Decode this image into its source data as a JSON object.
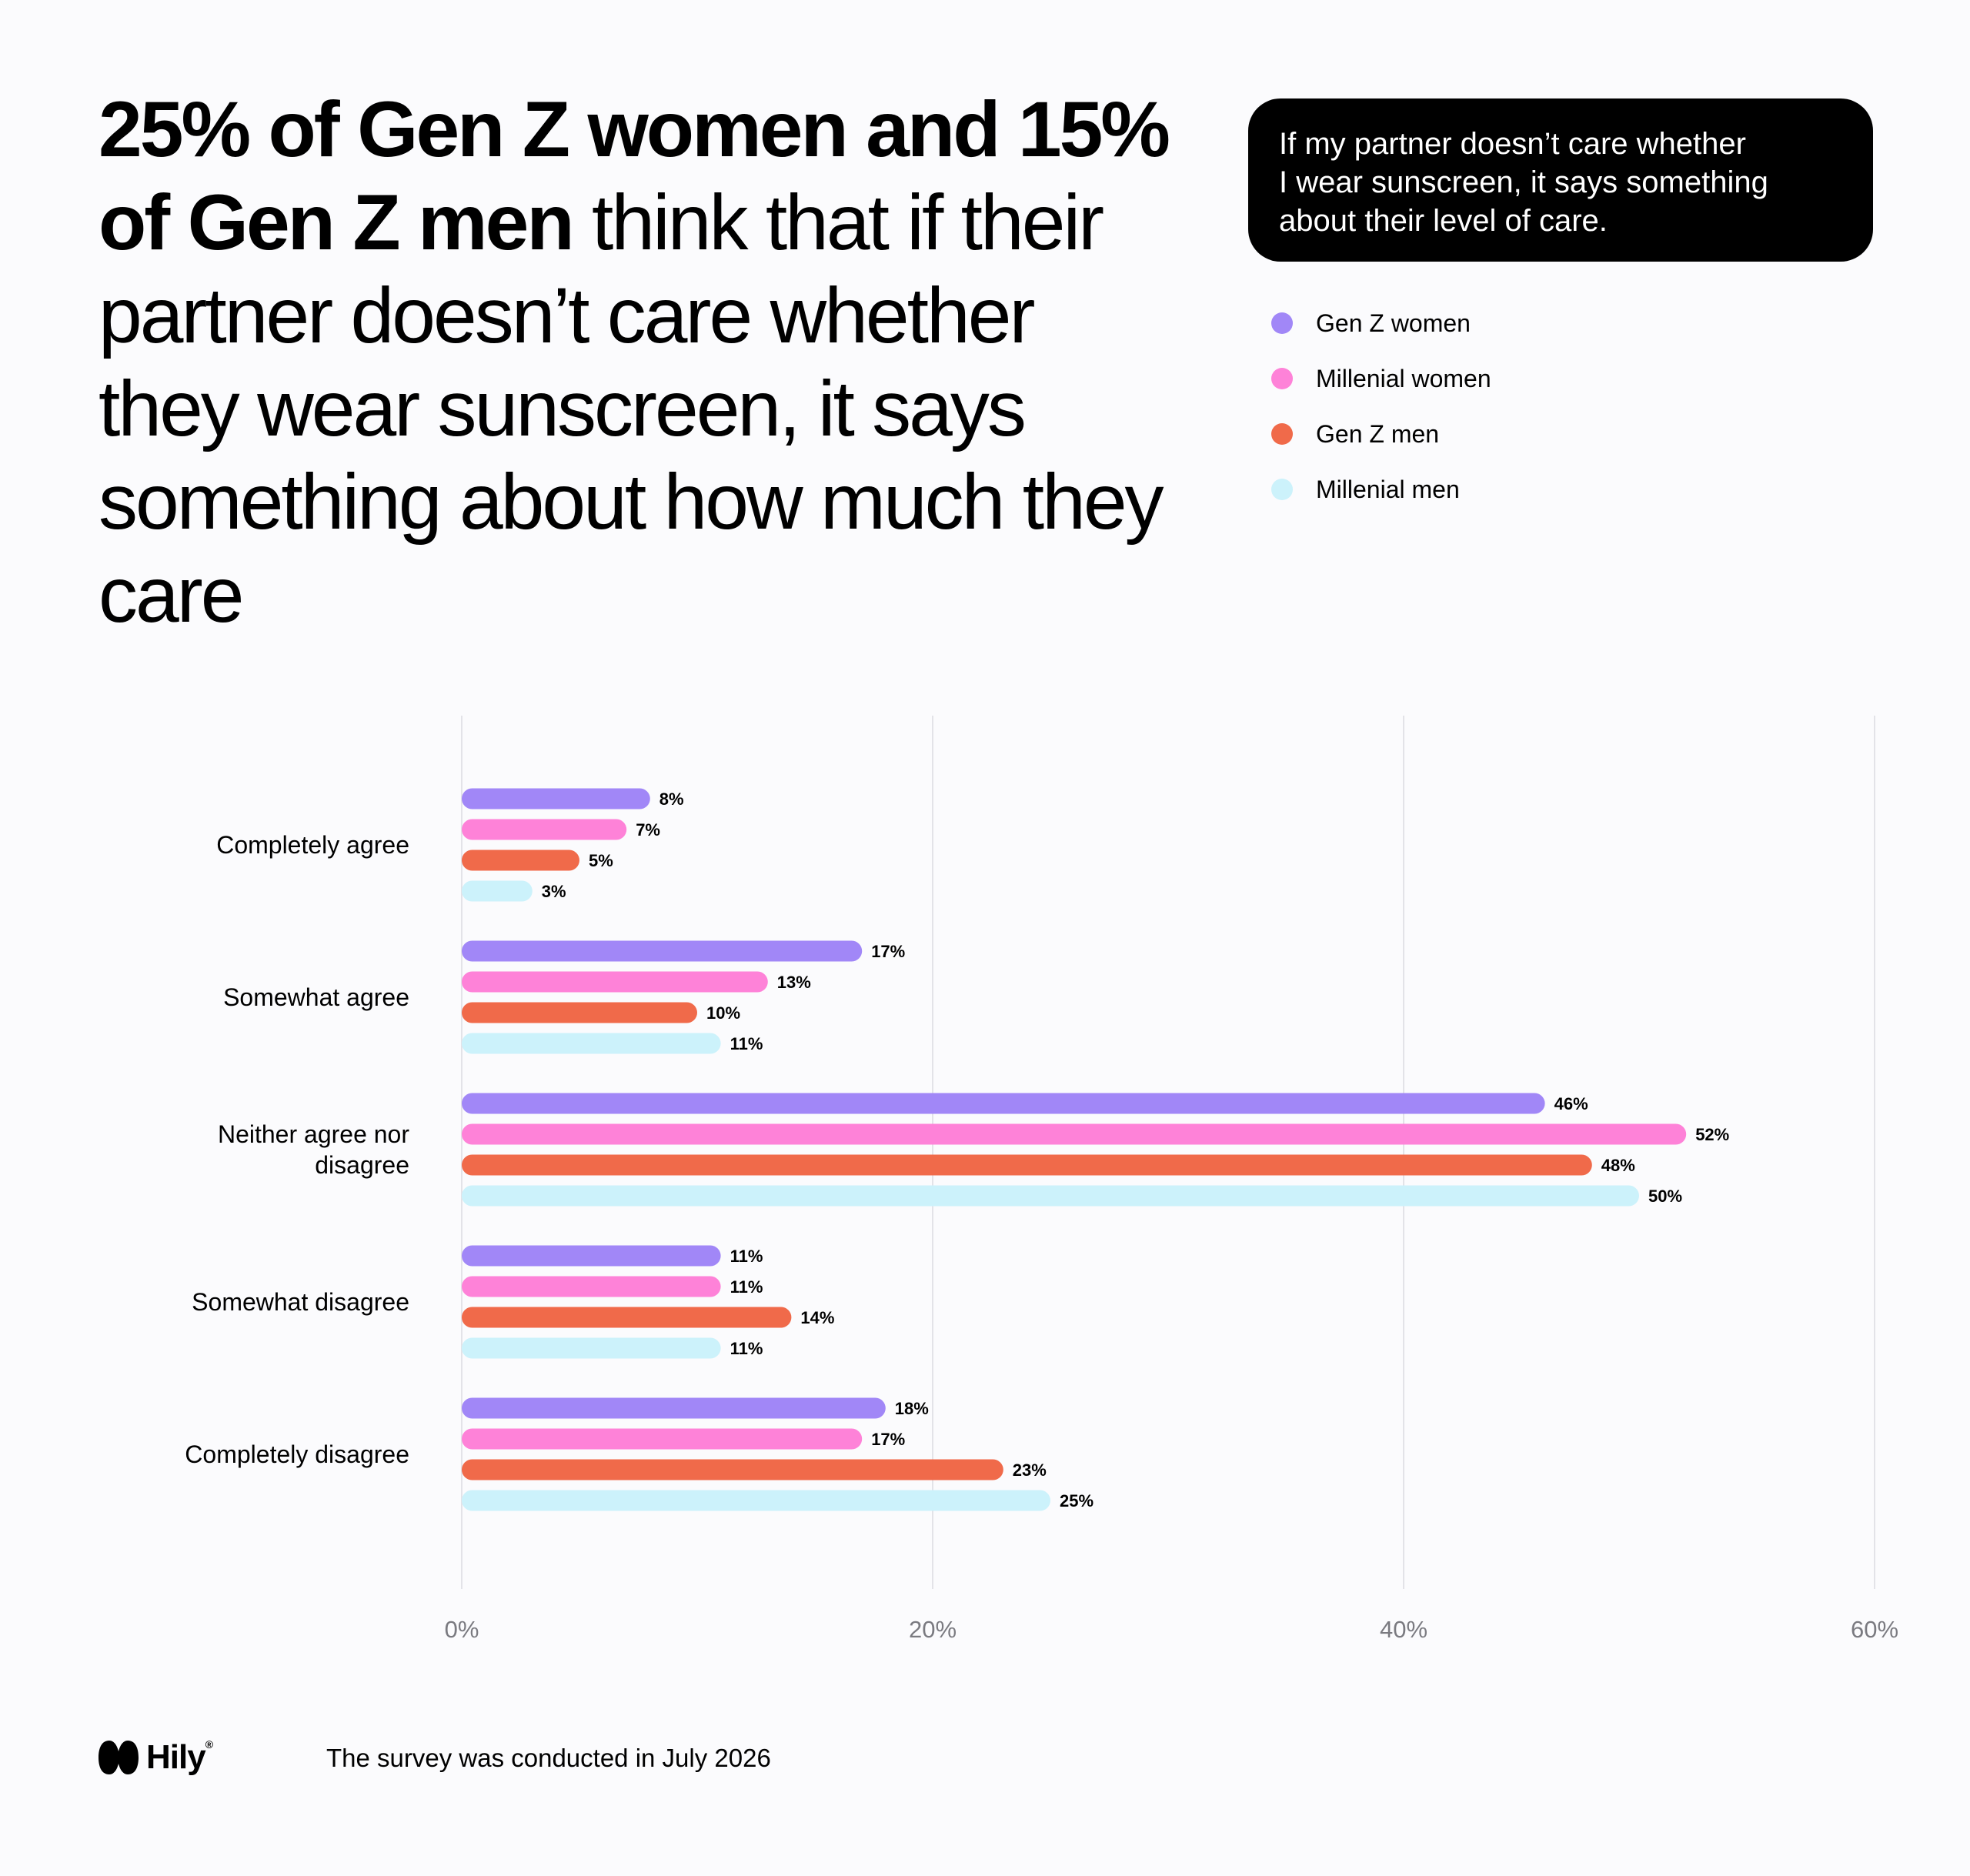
{
  "headline": {
    "bold": "25% of Gen Z women and 15% of Gen Z men",
    "regular": " think that if their partner doesn’t care whether they wear sunscreen, it says something about how much they care"
  },
  "question_box": {
    "lines": [
      "If my partner doesn’t care whether",
      "I wear sunscreen, it says something",
      "about their level of care."
    ]
  },
  "logo": {
    "text": "Hily",
    "mark": "®"
  },
  "footnote": "The survey was conducted in July 2026",
  "chart_data": {
    "type": "bar",
    "orientation": "horizontal",
    "categories": [
      [
        "Completely agree"
      ],
      [
        "Somewhat agree"
      ],
      [
        "Neither agree nor",
        "disagree"
      ],
      [
        "Somewhat disagree"
      ],
      [
        "Completely disagree"
      ]
    ],
    "series": [
      {
        "name": "Gen Z women",
        "color": "#A187F7",
        "values": [
          8,
          17,
          46,
          11,
          18
        ],
        "labels": [
          "8%",
          "17%",
          "46%",
          "11%",
          "18%"
        ]
      },
      {
        "name": "Millenial women",
        "color": "#FE82D8",
        "values": [
          7,
          13,
          52,
          11,
          17
        ],
        "labels": [
          "7%",
          "13%",
          "52%",
          "11%",
          "17%"
        ]
      },
      {
        "name": "Gen Z men",
        "color": "#F06A4A",
        "values": [
          5,
          10,
          48,
          14,
          23
        ],
        "labels": [
          "5%",
          "10%",
          "48%",
          "14%",
          "23%"
        ]
      },
      {
        "name": "Millenial men",
        "color": "#CCF2FB",
        "values": [
          3,
          11,
          50,
          11,
          25
        ],
        "labels": [
          "3%",
          "11%",
          "50%",
          "11%",
          "25%"
        ]
      }
    ],
    "xlim": [
      0,
      60
    ],
    "xticks": [
      0,
      20,
      40,
      60
    ],
    "xtick_labels": [
      "0%",
      "20%",
      "40%",
      "60%"
    ],
    "grid": true,
    "legend": "top-right"
  }
}
